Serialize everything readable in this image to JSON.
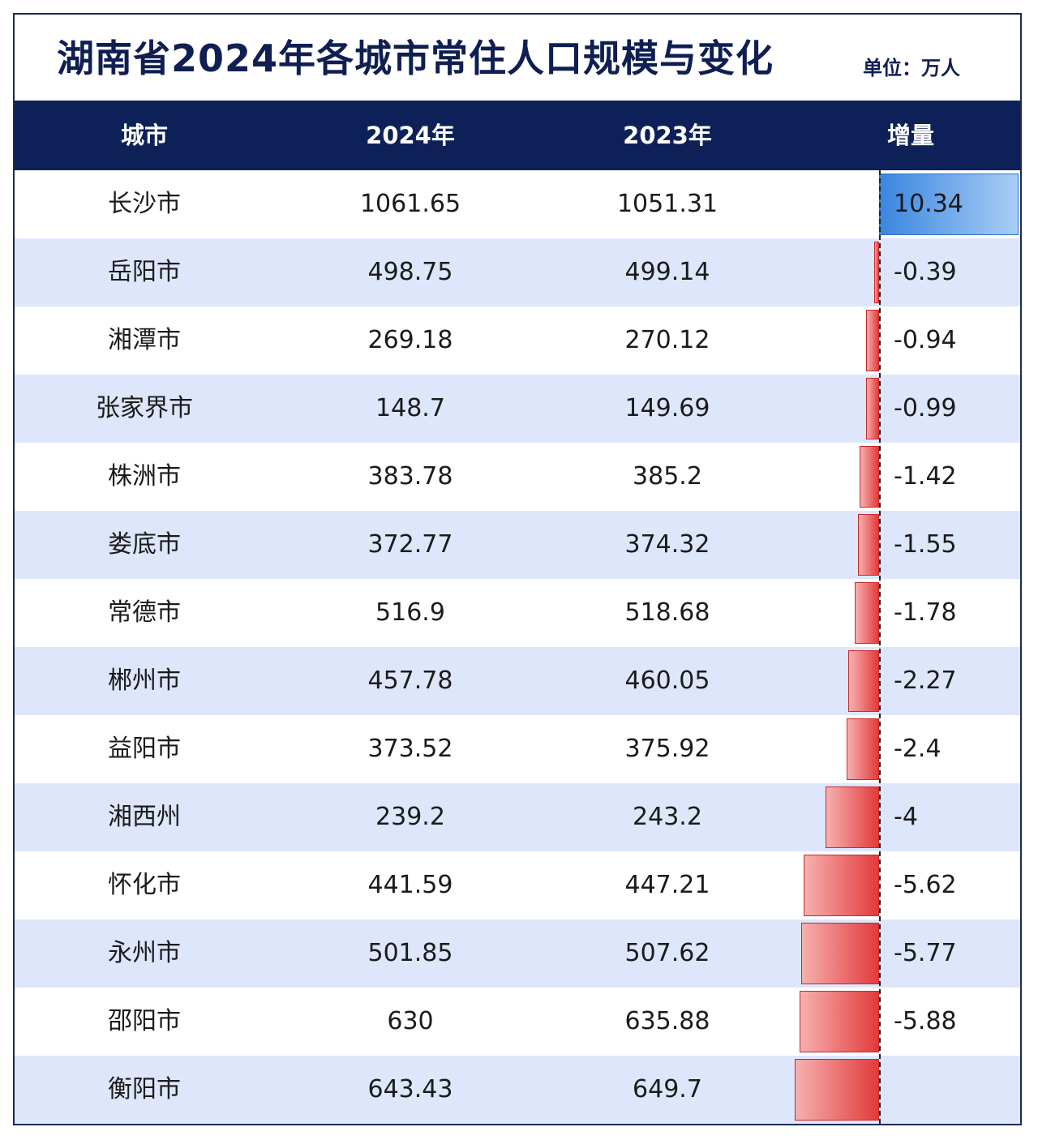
{
  "title": "湖南省2024年各城市常住人口规模与变化",
  "unit": "单位：万人",
  "chart_data": {
    "type": "table",
    "columns": [
      "城市",
      "2024年",
      "2023年",
      "增量"
    ],
    "rows": [
      {
        "city": "长沙市",
        "y2024": "1061.65",
        "y2023": "1051.31",
        "delta": "10.34",
        "delta_value": 10.34
      },
      {
        "city": "岳阳市",
        "y2024": "498.75",
        "y2023": "499.14",
        "delta": "-0.39",
        "delta_value": -0.39
      },
      {
        "city": "湘潭市",
        "y2024": "269.18",
        "y2023": "270.12",
        "delta": "-0.94",
        "delta_value": -0.94
      },
      {
        "city": "张家界市",
        "y2024": "148.7",
        "y2023": "149.69",
        "delta": "-0.99",
        "delta_value": -0.99
      },
      {
        "city": "株洲市",
        "y2024": "383.78",
        "y2023": "385.2",
        "delta": "-1.42",
        "delta_value": -1.42
      },
      {
        "city": "娄底市",
        "y2024": "372.77",
        "y2023": "374.32",
        "delta": "-1.55",
        "delta_value": -1.55
      },
      {
        "city": "常德市",
        "y2024": "516.9",
        "y2023": "518.68",
        "delta": "-1.78",
        "delta_value": -1.78
      },
      {
        "city": "郴州市",
        "y2024": "457.78",
        "y2023": "460.05",
        "delta": "-2.27",
        "delta_value": -2.27
      },
      {
        "city": "益阳市",
        "y2024": "373.52",
        "y2023": "375.92",
        "delta": "-2.4",
        "delta_value": -2.4
      },
      {
        "city": "湘西州",
        "y2024": "239.2",
        "y2023": "243.2",
        "delta": "-4",
        "delta_value": -4
      },
      {
        "city": "怀化市",
        "y2024": "441.59",
        "y2023": "447.21",
        "delta": "-5.62",
        "delta_value": -5.62
      },
      {
        "city": "永州市",
        "y2024": "501.85",
        "y2023": "507.62",
        "delta": "-5.77",
        "delta_value": -5.77
      },
      {
        "city": "邵阳市",
        "y2024": "630",
        "y2023": "635.88",
        "delta": "-5.88",
        "delta_value": -5.88
      },
      {
        "city": "衡阳市",
        "y2024": "643.43",
        "y2023": "649.7",
        "delta": "",
        "delta_value": -6.27
      }
    ],
    "colors": {
      "header": "#0d2158",
      "negative": "#e23b3b",
      "positive": "#3a86e0",
      "stripe": "#dde6fb"
    }
  }
}
